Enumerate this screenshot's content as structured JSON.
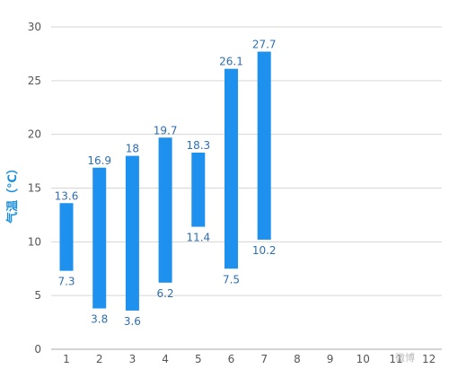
{
  "chart_data": {
    "type": "bar",
    "subtype": "floating-range",
    "categories": [
      "1",
      "2",
      "3",
      "4",
      "5",
      "6",
      "7",
      "8",
      "9",
      "10",
      "11",
      "12"
    ],
    "series": [
      {
        "high": [
          13.6,
          16.9,
          18,
          19.7,
          18.3,
          26.1,
          27.7,
          null,
          null,
          null,
          null,
          null
        ],
        "low": [
          7.3,
          3.8,
          3.6,
          6.2,
          11.4,
          7.5,
          10.2,
          null,
          null,
          null,
          null,
          null
        ]
      }
    ],
    "high_labels": [
      "13.6",
      "16.9",
      "18",
      "19.7",
      "18.3",
      "26.1",
      "27.7"
    ],
    "low_labels": [
      "7.3",
      "3.8",
      "3.6",
      "6.2",
      "11.4",
      "7.5",
      "10.2"
    ],
    "ylabel": "气温（℃）",
    "xlabel": "",
    "ylim": [
      0,
      30
    ],
    "yticks": [
      "0",
      "5",
      "10",
      "15",
      "20",
      "25",
      "30"
    ],
    "grid": true,
    "bar_color": "#1e90ee",
    "label_color": "#2f6fb0",
    "grid_color": "#d6d6d6",
    "watermark": "微博"
  }
}
